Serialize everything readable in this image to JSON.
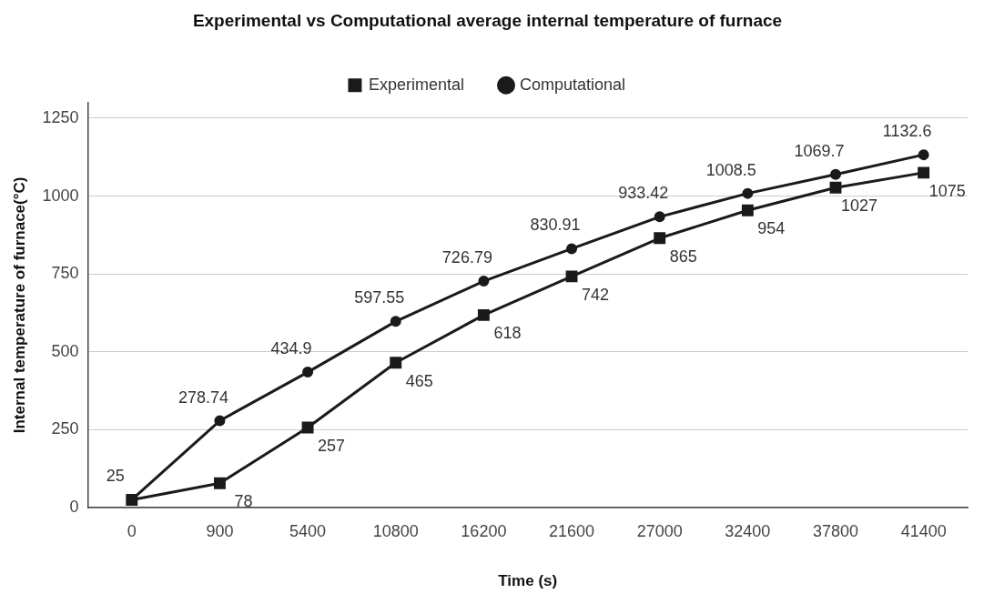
{
  "chart_data": {
    "type": "line",
    "title": "Experimental vs Computational average internal temperature of furnace",
    "xlabel": "Time (s)",
    "ylabel": "Internal temperature of furnace(°C)",
    "categories": [
      "0",
      "900",
      "5400",
      "10800",
      "16200",
      "21600",
      "27000",
      "32400",
      "37800",
      "41400"
    ],
    "series": [
      {
        "name": "Experimental",
        "color": "#1a1a1a",
        "marker": "square",
        "values": [
          25,
          78,
          257,
          465,
          618,
          742,
          865,
          954,
          1027,
          1075
        ],
        "value_labels": [
          null,
          "78",
          "257",
          "465",
          "618",
          "742",
          "865",
          "954",
          "1027",
          "1075"
        ]
      },
      {
        "name": "Computational",
        "color": "#1a1a1a",
        "marker": "circle",
        "values": [
          25,
          278.74,
          434.9,
          597.55,
          726.79,
          830.91,
          933.42,
          1008.5,
          1069.7,
          1132.6
        ],
        "value_labels": [
          "25",
          "278.74",
          "434.9",
          "597.55",
          "726.79",
          "830.91",
          "933.42",
          "1008.5",
          "1069.7",
          "1132.6"
        ]
      }
    ],
    "ylim": [
      0,
      1300
    ],
    "yticks": [
      0,
      250,
      500,
      750,
      1000,
      1250
    ],
    "grid": "y",
    "legend": "top",
    "line_style": "solid"
  }
}
